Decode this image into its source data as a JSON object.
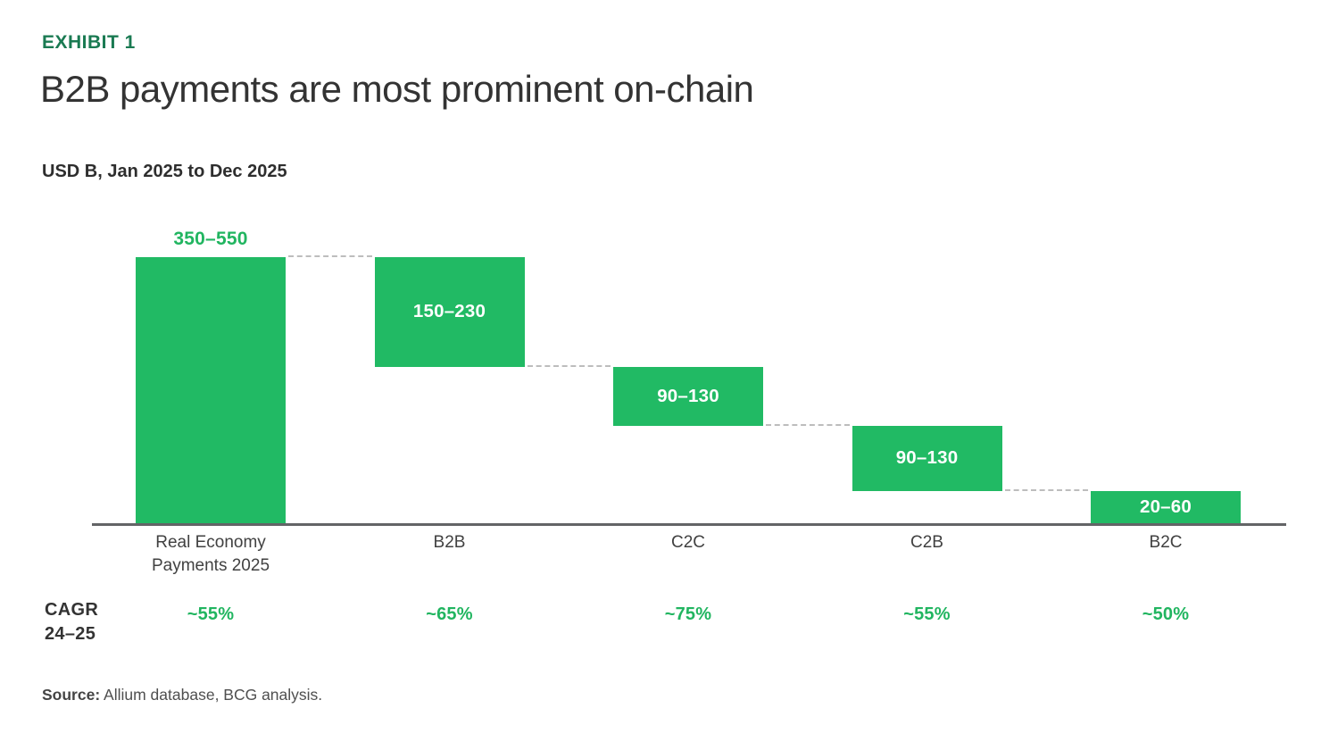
{
  "page": {
    "eyebrow": "EXHIBIT 1",
    "title": "B2B payments are most prominent on-chain",
    "subtitle": "USD B, Jan 2025 to Dec 2025",
    "source_label": "Source:",
    "source_text": " Allium database, BCG analysis."
  },
  "cagr": {
    "row_label_line1": "CAGR",
    "row_label_line2": "24–25"
  },
  "colors": {
    "bar_green": "#21ba64",
    "accent_text_green": "#21b560",
    "eyebrow_green": "#1a7a52",
    "title_dark": "#333333",
    "axis_line_gray": "#636466",
    "connector_gray": "#bdbdbd",
    "category_label_gray": "#414141",
    "source_gray": "#4f4f4f",
    "bar_value_white": "#ffffff"
  },
  "chart_data": {
    "type": "bar",
    "subtype": "waterfall",
    "title": "B2B payments are most prominent on-chain",
    "unit": "USD B",
    "period": "Jan 2025 to Dec 2025",
    "legend": "none",
    "grid": "off",
    "baseline": 0,
    "categories": [
      "Real Economy Payments 2025",
      "B2B",
      "C2C",
      "C2B",
      "B2C"
    ],
    "cagr_row_label": "CAGR 24–25",
    "segments": [
      {
        "category": "Real Economy Payments 2025",
        "range_label": "350–550",
        "low": 350,
        "high": 550,
        "plot_value": 450,
        "role": "total",
        "value_label_position": "above",
        "cagr_24_25": "~55%"
      },
      {
        "category": "B2B",
        "range_label": "150–230",
        "low": 150,
        "high": 230,
        "plot_value": 185,
        "role": "segment",
        "value_label_position": "inside",
        "cagr_24_25": "~65%"
      },
      {
        "category": "C2C",
        "range_label": "90–130",
        "low": 90,
        "high": 130,
        "plot_value": 100,
        "role": "segment",
        "value_label_position": "inside",
        "cagr_24_25": "~75%"
      },
      {
        "category": "C2B",
        "range_label": "90–130",
        "low": 90,
        "high": 130,
        "plot_value": 110,
        "role": "segment",
        "value_label_position": "inside",
        "cagr_24_25": "~55%"
      },
      {
        "category": "B2C",
        "range_label": "20–60",
        "low": 20,
        "high": 60,
        "plot_value": 55,
        "role": "segment",
        "value_label_position": "inside",
        "cagr_24_25": "~50%"
      }
    ]
  }
}
